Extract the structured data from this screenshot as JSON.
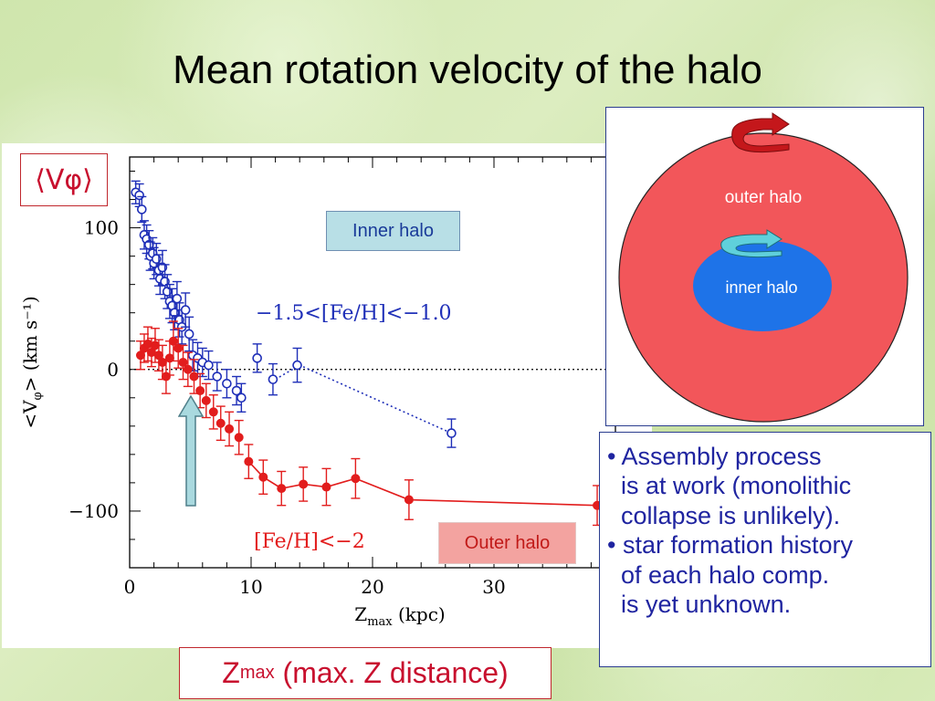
{
  "slide": {
    "title": "Mean rotation velocity of the halo"
  },
  "labels": {
    "vphi_symbol": "⟨Vφ⟩",
    "inner_halo": "Inner halo",
    "outer_halo": "Outer halo",
    "zmax_main": "Z",
    "zmax_sub": "max",
    "zmax_rest": " (max. Z distance)"
  },
  "halo_diagram": {
    "outer_label": "outer halo",
    "inner_label": "inner halo",
    "outer_color": "#f2565a",
    "inner_color": "#1e73e8"
  },
  "bullets": [
    "• Assembly process",
    "  is at work (monolithic",
    "  collapse is unlikely).",
    "• star formation history",
    "  of each halo comp.",
    "  is yet unknown."
  ],
  "chart_data": {
    "type": "scatter",
    "xlabel_main": "Z",
    "xlabel_sub": "max",
    "xlabel_rest": " (kpc)",
    "ylabel_text": "<V",
    "ylabel_sub": "φ",
    "ylabel_rest": ">  (km s⁻¹)",
    "xlim": [
      0,
      40
    ],
    "ylim": [
      -140,
      150
    ],
    "xticks": [
      0,
      10,
      20,
      30
    ],
    "yticks": [
      100,
      0,
      -100
    ],
    "x_tick_labels": [
      "0",
      "10",
      "20",
      "30"
    ],
    "y_tick_labels": [
      "100",
      "0",
      "−100"
    ],
    "zero_line": true,
    "series": [
      {
        "name": "−1.5<[Fe/H]<−1.0",
        "color": "#1f2fb8",
        "marker": "open-circle",
        "line": "dotted",
        "points": [
          {
            "x": 0.5,
            "y": 125,
            "e": 8
          },
          {
            "x": 0.8,
            "y": 123,
            "e": 8
          },
          {
            "x": 1.0,
            "y": 113,
            "e": 9
          },
          {
            "x": 1.2,
            "y": 95,
            "e": 10
          },
          {
            "x": 1.4,
            "y": 92,
            "e": 10
          },
          {
            "x": 1.6,
            "y": 88,
            "e": 10
          },
          {
            "x": 1.7,
            "y": 80,
            "e": 10
          },
          {
            "x": 1.9,
            "y": 82,
            "e": 11
          },
          {
            "x": 2.0,
            "y": 75,
            "e": 11
          },
          {
            "x": 2.2,
            "y": 78,
            "e": 11
          },
          {
            "x": 2.4,
            "y": 70,
            "e": 11
          },
          {
            "x": 2.5,
            "y": 64,
            "e": 11
          },
          {
            "x": 2.7,
            "y": 72,
            "e": 12
          },
          {
            "x": 2.9,
            "y": 62,
            "e": 12
          },
          {
            "x": 3.1,
            "y": 55,
            "e": 12
          },
          {
            "x": 3.3,
            "y": 48,
            "e": 12
          },
          {
            "x": 3.5,
            "y": 45,
            "e": 12
          },
          {
            "x": 3.7,
            "y": 40,
            "e": 12
          },
          {
            "x": 3.9,
            "y": 50,
            "e": 12
          },
          {
            "x": 4.1,
            "y": 35,
            "e": 12
          },
          {
            "x": 4.3,
            "y": 30,
            "e": 12
          },
          {
            "x": 4.6,
            "y": 42,
            "e": 12
          },
          {
            "x": 4.9,
            "y": 25,
            "e": 12
          },
          {
            "x": 5.2,
            "y": 10,
            "e": 11
          },
          {
            "x": 5.6,
            "y": 8,
            "e": 11
          },
          {
            "x": 6.0,
            "y": 5,
            "e": 10
          },
          {
            "x": 6.5,
            "y": 3,
            "e": 10
          },
          {
            "x": 7.2,
            "y": -5,
            "e": 10
          },
          {
            "x": 8.0,
            "y": -10,
            "e": 10
          },
          {
            "x": 8.8,
            "y": -15,
            "e": 10
          },
          {
            "x": 9.2,
            "y": -20,
            "e": 10
          },
          {
            "x": 10.5,
            "y": 8,
            "e": 10
          },
          {
            "x": 11.8,
            "y": -7,
            "e": 11
          },
          {
            "x": 13.8,
            "y": 3,
            "e": 12
          },
          {
            "x": 26.5,
            "y": -45,
            "e": 10
          }
        ],
        "connect": [
          {
            "x": 12.0,
            "y": -7
          },
          {
            "x": 14.0,
            "y": 3
          },
          {
            "x": 26.5,
            "y": -45
          }
        ]
      },
      {
        "name": "[Fe/H]<−2",
        "color": "#e21d1d",
        "marker": "filled-circle",
        "line": "solid",
        "points": [
          {
            "x": 0.9,
            "y": 10,
            "e": 10
          },
          {
            "x": 1.2,
            "y": 15,
            "e": 10
          },
          {
            "x": 1.5,
            "y": 18,
            "e": 12
          },
          {
            "x": 1.8,
            "y": 12,
            "e": 10
          },
          {
            "x": 2.1,
            "y": 17,
            "e": 12
          },
          {
            "x": 2.4,
            "y": 10,
            "e": 11
          },
          {
            "x": 2.7,
            "y": 5,
            "e": 12
          },
          {
            "x": 3.0,
            "y": -5,
            "e": 12
          },
          {
            "x": 3.3,
            "y": 8,
            "e": 12
          },
          {
            "x": 3.6,
            "y": 20,
            "e": 14
          },
          {
            "x": 4.0,
            "y": 15,
            "e": 14
          },
          {
            "x": 4.4,
            "y": 5,
            "e": 12
          },
          {
            "x": 4.8,
            "y": 0,
            "e": 12
          },
          {
            "x": 5.3,
            "y": -5,
            "e": 12
          },
          {
            "x": 5.8,
            "y": -15,
            "e": 12
          },
          {
            "x": 6.3,
            "y": -22,
            "e": 12
          },
          {
            "x": 6.9,
            "y": -30,
            "e": 12
          },
          {
            "x": 7.5,
            "y": -38,
            "e": 12
          },
          {
            "x": 8.2,
            "y": -42,
            "e": 12
          },
          {
            "x": 9.0,
            "y": -48,
            "e": 12
          },
          {
            "x": 9.8,
            "y": -65,
            "e": 12
          },
          {
            "x": 11.0,
            "y": -76,
            "e": 12
          },
          {
            "x": 12.5,
            "y": -84,
            "e": 12
          },
          {
            "x": 14.3,
            "y": -81,
            "e": 12
          },
          {
            "x": 16.2,
            "y": -83,
            "e": 13
          },
          {
            "x": 18.6,
            "y": -77,
            "e": 14
          },
          {
            "x": 23.0,
            "y": -92,
            "e": 14
          },
          {
            "x": 38.5,
            "y": -96,
            "e": 14
          }
        ],
        "connect": [
          {
            "x": 9.8,
            "y": -65
          },
          {
            "x": 11.0,
            "y": -76
          },
          {
            "x": 12.5,
            "y": -84
          },
          {
            "x": 14.3,
            "y": -81
          },
          {
            "x": 16.2,
            "y": -83
          },
          {
            "x": 18.6,
            "y": -77
          },
          {
            "x": 23.0,
            "y": -92
          },
          {
            "x": 38.5,
            "y": -96
          }
        ]
      }
    ]
  }
}
